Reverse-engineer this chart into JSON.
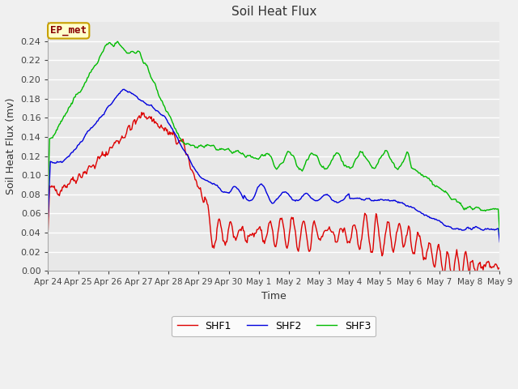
{
  "title": "Soil Heat Flux",
  "xlabel": "Time",
  "ylabel": "Soil Heat Flux (mv)",
  "ylim": [
    0.0,
    0.26
  ],
  "yticks": [
    0.0,
    0.02,
    0.04,
    0.06,
    0.08,
    0.1,
    0.12,
    0.14,
    0.16,
    0.18,
    0.2,
    0.22,
    0.24
  ],
  "fig_bg_color": "#f0f0f0",
  "plot_bg_color": "#e8e8e8",
  "grid_color": "#ffffff",
  "annotation_label": "EP_met",
  "annotation_bg": "#ffffcc",
  "annotation_border": "#c8a000",
  "annotation_text_color": "#880000",
  "line_colors": {
    "SHF1": "#dd0000",
    "SHF2": "#0000dd",
    "SHF3": "#00bb00"
  },
  "legend_labels": [
    "SHF1",
    "SHF2",
    "SHF3"
  ],
  "xtick_labels": [
    "Apr 24",
    "Apr 25",
    "Apr 26",
    "Apr 27",
    "Apr 28",
    "Apr 29",
    "Apr 30",
    "May 1",
    "May 2",
    "May 3",
    "May 4",
    "May 5",
    "May 6",
    "May 7",
    "May 8",
    "May 9"
  ],
  "title_fontsize": 11,
  "axis_label_fontsize": 9,
  "tick_fontsize": 8,
  "legend_fontsize": 9
}
